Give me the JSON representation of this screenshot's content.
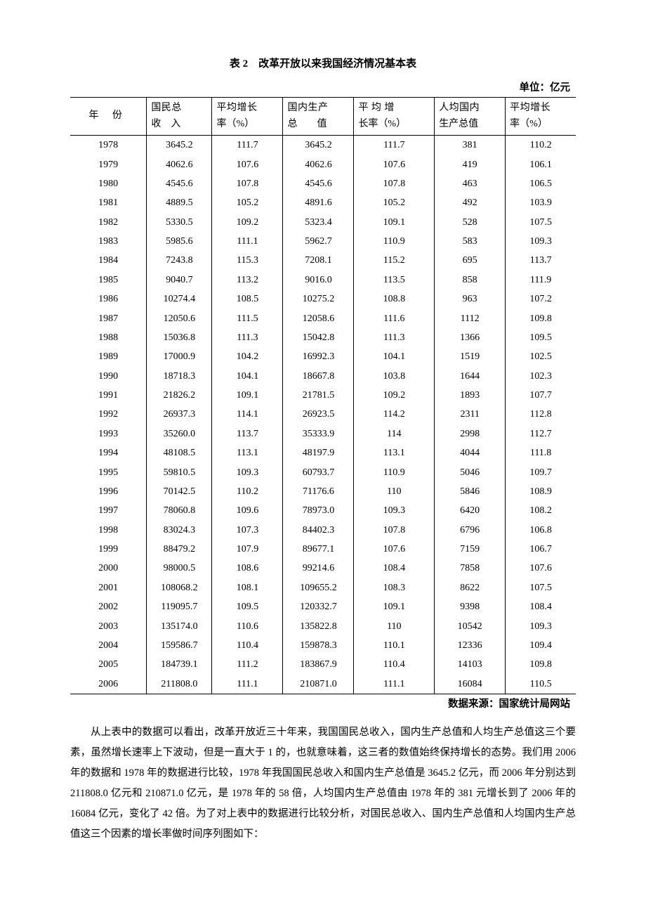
{
  "table": {
    "title": "表 2　改革开放以来我国经济情况基本表",
    "unit_label": "单位：亿元",
    "source_label": "数据来源：国家统计局网站",
    "columns": {
      "year": {
        "line1": "年 份",
        "line2": ""
      },
      "gni": {
        "line1": "国民总",
        "line2": "收　入"
      },
      "gni_growth": {
        "line1": "平均增长",
        "line2": "率（%）"
      },
      "gdp": {
        "line1": "国内生产",
        "line2": "总　　值"
      },
      "gdp_growth": {
        "line1": "平 均 增",
        "line2": "长率（%）"
      },
      "pcgdp": {
        "line1": "人均国内",
        "line2": "生产总值"
      },
      "pcgdp_growth": {
        "line1": "平均增长",
        "line2": "率（%）"
      }
    },
    "rows": [
      {
        "year": "1978",
        "gni": "3645.2",
        "gni_growth": "111.7",
        "gdp": "3645.2",
        "gdp_growth": "111.7",
        "pcgdp": "381",
        "pcgdp_growth": "110.2"
      },
      {
        "year": "1979",
        "gni": "4062.6",
        "gni_growth": "107.6",
        "gdp": "4062.6",
        "gdp_growth": "107.6",
        "pcgdp": "419",
        "pcgdp_growth": "106.1"
      },
      {
        "year": "1980",
        "gni": "4545.6",
        "gni_growth": "107.8",
        "gdp": "4545.6",
        "gdp_growth": "107.8",
        "pcgdp": "463",
        "pcgdp_growth": "106.5"
      },
      {
        "year": "1981",
        "gni": "4889.5",
        "gni_growth": "105.2",
        "gdp": "4891.6",
        "gdp_growth": "105.2",
        "pcgdp": "492",
        "pcgdp_growth": "103.9"
      },
      {
        "year": "1982",
        "gni": "5330.5",
        "gni_growth": "109.2",
        "gdp": "5323.4",
        "gdp_growth": "109.1",
        "pcgdp": "528",
        "pcgdp_growth": "107.5"
      },
      {
        "year": "1983",
        "gni": "5985.6",
        "gni_growth": "111.1",
        "gdp": "5962.7",
        "gdp_growth": "110.9",
        "pcgdp": "583",
        "pcgdp_growth": "109.3"
      },
      {
        "year": "1984",
        "gni": "7243.8",
        "gni_growth": "115.3",
        "gdp": "7208.1",
        "gdp_growth": "115.2",
        "pcgdp": "695",
        "pcgdp_growth": "113.7"
      },
      {
        "year": "1985",
        "gni": "9040.7",
        "gni_growth": "113.2",
        "gdp": "9016.0",
        "gdp_growth": "113.5",
        "pcgdp": "858",
        "pcgdp_growth": "111.9"
      },
      {
        "year": "1986",
        "gni": "10274.4",
        "gni_growth": "108.5",
        "gdp": "10275.2",
        "gdp_growth": "108.8",
        "pcgdp": "963",
        "pcgdp_growth": "107.2"
      },
      {
        "year": "1987",
        "gni": "12050.6",
        "gni_growth": "111.5",
        "gdp": "12058.6",
        "gdp_growth": "111.6",
        "pcgdp": "1112",
        "pcgdp_growth": "109.8"
      },
      {
        "year": "1988",
        "gni": "15036.8",
        "gni_growth": "111.3",
        "gdp": "15042.8",
        "gdp_growth": "111.3",
        "pcgdp": "1366",
        "pcgdp_growth": "109.5"
      },
      {
        "year": "1989",
        "gni": "17000.9",
        "gni_growth": "104.2",
        "gdp": "16992.3",
        "gdp_growth": "104.1",
        "pcgdp": "1519",
        "pcgdp_growth": "102.5"
      },
      {
        "year": "1990",
        "gni": "18718.3",
        "gni_growth": "104.1",
        "gdp": "18667.8",
        "gdp_growth": "103.8",
        "pcgdp": "1644",
        "pcgdp_growth": "102.3"
      },
      {
        "year": "1991",
        "gni": "21826.2",
        "gni_growth": "109.1",
        "gdp": "21781.5",
        "gdp_growth": "109.2",
        "pcgdp": "1893",
        "pcgdp_growth": "107.7"
      },
      {
        "year": "1992",
        "gni": "26937.3",
        "gni_growth": "114.1",
        "gdp": "26923.5",
        "gdp_growth": "114.2",
        "pcgdp": "2311",
        "pcgdp_growth": "112.8"
      },
      {
        "year": "1993",
        "gni": "35260.0",
        "gni_growth": "113.7",
        "gdp": "35333.9",
        "gdp_growth": "114",
        "pcgdp": "2998",
        "pcgdp_growth": "112.7"
      },
      {
        "year": "1994",
        "gni": "48108.5",
        "gni_growth": "113.1",
        "gdp": "48197.9",
        "gdp_growth": "113.1",
        "pcgdp": "4044",
        "pcgdp_growth": "111.8"
      },
      {
        "year": "1995",
        "gni": "59810.5",
        "gni_growth": "109.3",
        "gdp": "60793.7",
        "gdp_growth": "110.9",
        "pcgdp": "5046",
        "pcgdp_growth": "109.7"
      },
      {
        "year": "1996",
        "gni": "70142.5",
        "gni_growth": "110.2",
        "gdp": "71176.6",
        "gdp_growth": "110",
        "pcgdp": "5846",
        "pcgdp_growth": "108.9"
      },
      {
        "year": "1997",
        "gni": "78060.8",
        "gni_growth": "109.6",
        "gdp": "78973.0",
        "gdp_growth": "109.3",
        "pcgdp": "6420",
        "pcgdp_growth": "108.2"
      },
      {
        "year": "1998",
        "gni": "83024.3",
        "gni_growth": "107.3",
        "gdp": "84402.3",
        "gdp_growth": "107.8",
        "pcgdp": "6796",
        "pcgdp_growth": "106.8"
      },
      {
        "year": "1999",
        "gni": "88479.2",
        "gni_growth": "107.9",
        "gdp": "89677.1",
        "gdp_growth": "107.6",
        "pcgdp": "7159",
        "pcgdp_growth": "106.7"
      },
      {
        "year": "2000",
        "gni": "98000.5",
        "gni_growth": "108.6",
        "gdp": "99214.6",
        "gdp_growth": "108.4",
        "pcgdp": "7858",
        "pcgdp_growth": "107.6"
      },
      {
        "year": "2001",
        "gni": "108068.2",
        "gni_growth": "108.1",
        "gdp": "109655.2",
        "gdp_growth": "108.3",
        "pcgdp": "8622",
        "pcgdp_growth": "107.5"
      },
      {
        "year": "2002",
        "gni": "119095.7",
        "gni_growth": "109.5",
        "gdp": "120332.7",
        "gdp_growth": "109.1",
        "pcgdp": "9398",
        "pcgdp_growth": "108.4"
      },
      {
        "year": "2003",
        "gni": "135174.0",
        "gni_growth": "110.6",
        "gdp": "135822.8",
        "gdp_growth": "110",
        "pcgdp": "10542",
        "pcgdp_growth": "109.3"
      },
      {
        "year": "2004",
        "gni": "159586.7",
        "gni_growth": "110.4",
        "gdp": "159878.3",
        "gdp_growth": "110.1",
        "pcgdp": "12336",
        "pcgdp_growth": "109.4"
      },
      {
        "year": "2005",
        "gni": "184739.1",
        "gni_growth": "111.2",
        "gdp": "183867.9",
        "gdp_growth": "110.4",
        "pcgdp": "14103",
        "pcgdp_growth": "109.8"
      },
      {
        "year": "2006",
        "gni": "211808.0",
        "gni_growth": "111.1",
        "gdp": "210871.0",
        "gdp_growth": "111.1",
        "pcgdp": "16084",
        "pcgdp_growth": "110.5"
      }
    ]
  },
  "body_text": "从上表中的数据可以看出，改革开放近三十年来，我国国民总收入，国内生产总值和人均生产总值这三个要素，虽然增长速率上下波动，但是一直大于 1 的，也就意味着，这三者的数值始终保持增长的态势。我们用 2006 年的数据和 1978 年的数据进行比较，1978 年我国国民总收入和国内生产总值是 3645.2 亿元，而 2006 年分别达到 211808.0 亿元和 210871.0 亿元，是 1978 年的 58 倍，人均国内生产总值由 1978 年的 381 元增长到了 2006 年的 16084 亿元，变化了 42 倍。为了对上表中的数据进行比较分析，对国民总收入、国内生产总值和人均国内生产总值这三个因素的增长率做时间序列图如下："
}
